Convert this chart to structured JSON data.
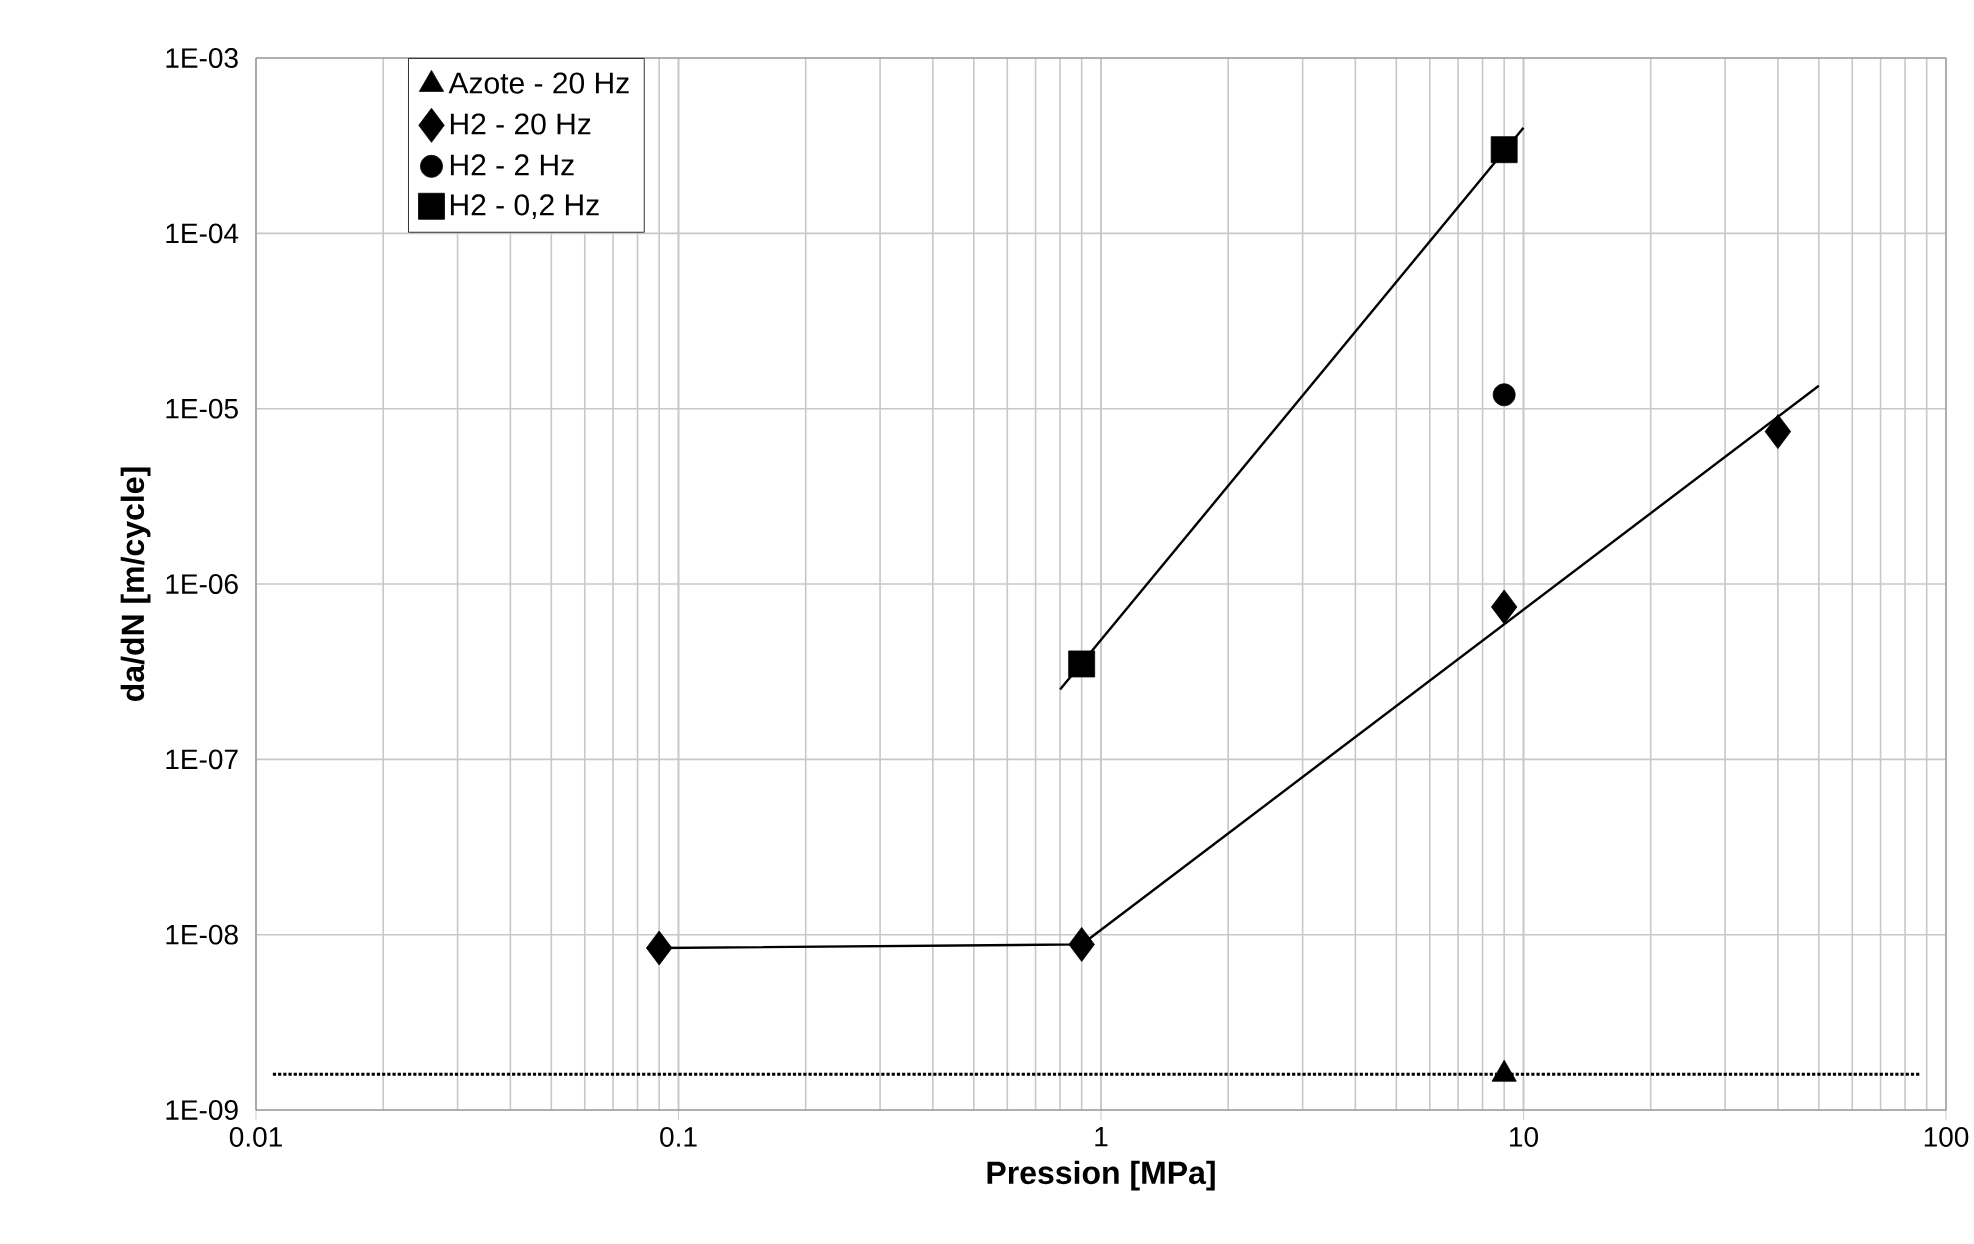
{
  "chart_data": {
    "type": "scatter",
    "xlabel": "Pression [MPa]",
    "ylabel": "da/dN [m/cycle]",
    "log": "xy",
    "grid": true,
    "legend": "top left",
    "xlim": [
      0.01,
      100
    ],
    "xticks": [
      0.01,
      0.1,
      1,
      10,
      100
    ],
    "ylim": [
      1e-09,
      0.001
    ],
    "yticks": [
      {
        "value": 1e-09,
        "label": "1E-09"
      },
      {
        "value": 1e-08,
        "label": "1E-08"
      },
      {
        "value": 1e-07,
        "label": "1E-07"
      },
      {
        "value": 1e-06,
        "label": "1E-06"
      },
      {
        "value": 1e-05,
        "label": "1E-05"
      },
      {
        "value": 0.0001,
        "label": "1E-04"
      },
      {
        "value": 0.001,
        "label": "1E-03"
      }
    ],
    "series": [
      {
        "name": "Azote - 20 Hz",
        "marker": "triangle",
        "color": "#000000",
        "x": [
          9
        ],
        "values": [
          1.6e-09
        ]
      },
      {
        "name": "H2 - 20 Hz",
        "marker": "diamond",
        "color": "#000000",
        "x": [
          0.09,
          0.9,
          9,
          40
        ],
        "values": [
          8.4e-09,
          8.8e-09,
          7.4e-07,
          7.4e-06
        ]
      },
      {
        "name": "H2 - 2 Hz",
        "marker": "circle",
        "color": "#000000",
        "x": [
          9
        ],
        "values": [
          1.2e-05
        ]
      },
      {
        "name": "H2 - 0,2 Hz",
        "marker": "square",
        "color": "#000000",
        "x": [
          0.9,
          9
        ],
        "values": [
          3.5e-07,
          0.0003
        ]
      },
      {
        "type": "line",
        "marker": "none",
        "color": "#000000",
        "x": [
          0.8,
          10
        ],
        "values": [
          2.5e-07,
          0.0004
        ]
      },
      {
        "type": "line",
        "marker": "none",
        "color": "#000000",
        "x": [
          0.09,
          0.9,
          50
        ],
        "values": [
          8.4e-09,
          8.8e-09,
          1.35e-05
        ]
      }
    ],
    "ref_lines": [
      {
        "axis": "y",
        "value": 1.6e-09,
        "line_style": "dotted",
        "color": "#000000"
      }
    ]
  }
}
